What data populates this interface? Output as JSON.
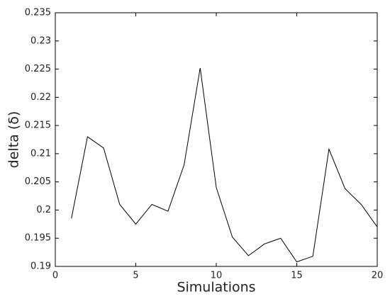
{
  "chart_data": {
    "type": "line",
    "xlabel": "Simulations",
    "ylabel": "delta (δ)",
    "x": [
      1,
      2,
      3,
      4,
      5,
      6,
      7,
      8,
      9,
      10,
      11,
      12,
      13,
      14,
      15,
      16,
      17,
      18,
      19,
      20
    ],
    "series": [
      {
        "color": "#000000",
        "values": [
          0.1985,
          0.213,
          0.211,
          0.201,
          0.1975,
          0.201,
          0.1998,
          0.208,
          0.2252,
          0.204,
          0.1952,
          0.1919,
          0.194,
          0.195,
          0.1908,
          0.1918,
          0.2108,
          0.2038,
          0.201,
          0.197
        ]
      }
    ],
    "xlim": [
      0,
      20
    ],
    "xticks": [
      0,
      5,
      10,
      15,
      20
    ],
    "ylim": [
      0.19,
      0.235
    ],
    "yticks": [
      0.19,
      0.195,
      0.2,
      0.205,
      0.21,
      0.215,
      0.22,
      0.225,
      0.23,
      0.235
    ]
  }
}
